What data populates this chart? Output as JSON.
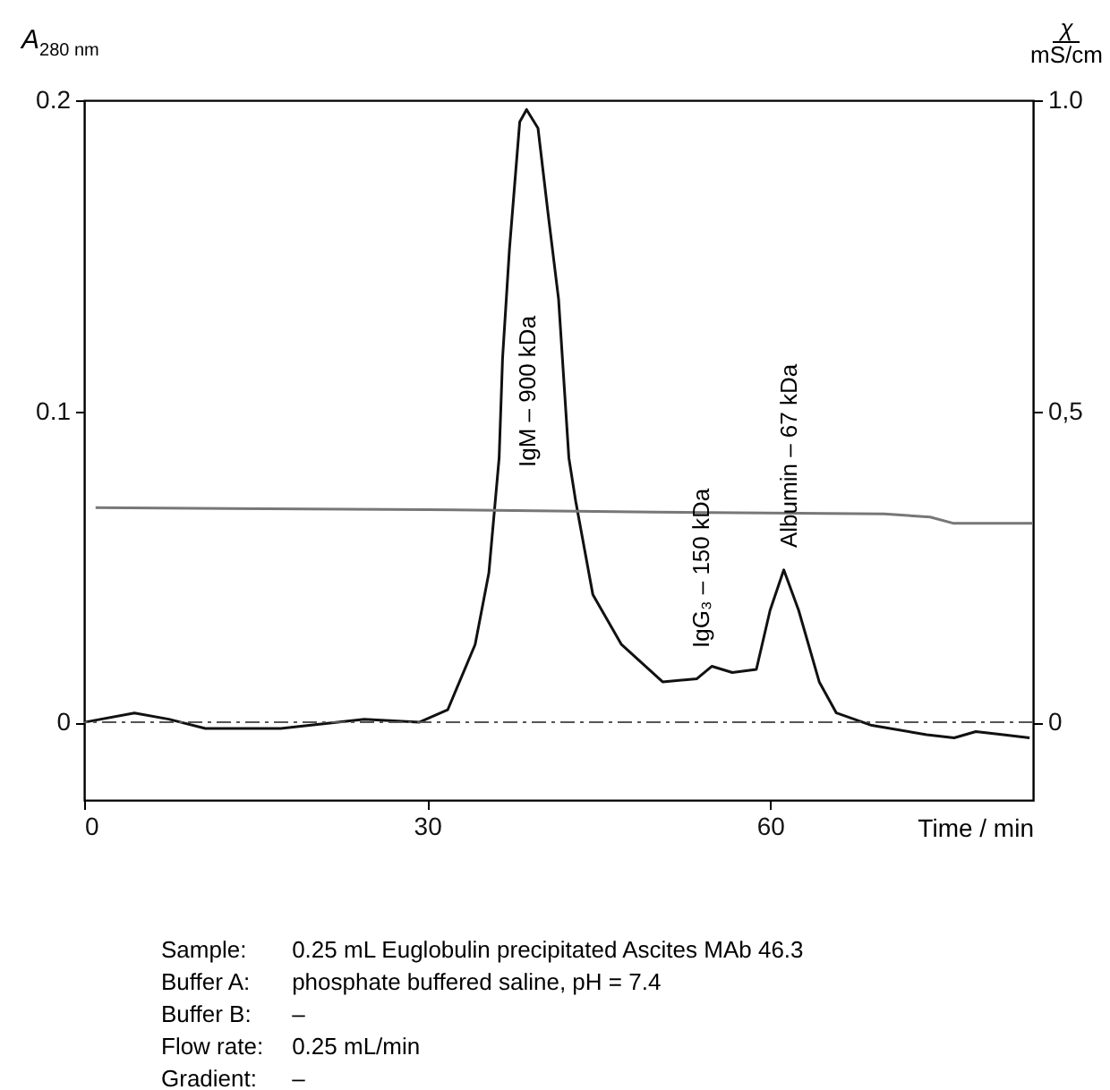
{
  "chart_data": {
    "type": "line",
    "xlabel": "Time / min",
    "ylabel": "A$_{280 nm}$",
    "y2label": "χ mS/cm",
    "xlim": [
      0,
      83
    ],
    "xticks": [
      0,
      30,
      60
    ],
    "ylim": [
      -0.025,
      0.2
    ],
    "yticks": [
      0,
      0.1,
      0.2
    ],
    "y2lim": [
      -0.125,
      1.0
    ],
    "y2ticks": [
      0,
      {
        "value": 0.5,
        "label": "0,5"
      },
      {
        "value": 1.0,
        "label": "1.0"
      }
    ],
    "grid": false,
    "legend": false,
    "marker": "none",
    "series": [
      {
        "color": "#111111",
        "x": [
          0,
          4.4,
          7.4,
          10.6,
          17.2,
          24.5,
          29.3,
          31.8,
          34.2,
          35.4,
          36.3,
          36.6,
          37.2,
          38.1,
          38.7,
          39.7,
          40.6,
          41.5,
          42.4,
          43.0,
          44.5,
          47.0,
          50.6,
          53.6,
          54.9,
          56.7,
          58.8,
          60.0,
          61.2,
          62.5,
          64.3,
          65.8,
          68.9,
          73.7,
          76.1,
          78.0,
          80.4,
          82.7
        ],
        "values": [
          0,
          0.003,
          0.001,
          -0.002,
          -0.002,
          0.001,
          0,
          0.004,
          0.025,
          0.048,
          0.085,
          0.117,
          0.152,
          0.193,
          0.197,
          0.191,
          0.163,
          0.136,
          0.085,
          0.071,
          0.041,
          0.025,
          0.013,
          0.014,
          0.018,
          0.016,
          0.017,
          0.036,
          0.049,
          0.036,
          0.013,
          0.003,
          -0.001,
          -0.004,
          -0.005,
          -0.003,
          -0.004,
          -0.005
        ]
      },
      {
        "color": "#777777",
        "axis": "y2",
        "x": [
          1,
          30,
          50,
          70,
          74,
          76,
          83
        ],
        "values": [
          0.345,
          0.342,
          0.338,
          0.335,
          0.33,
          0.32,
          0.32
        ]
      }
    ],
    "ref_lines": [
      {
        "axis": "y",
        "value": 0,
        "color": "#555555",
        "line_style": "dashed"
      }
    ],
    "annotations": [
      "IgM – 900 kDa",
      "IgG₃ – 150 kDa",
      "Albumin – 67 kDa",
      "Sample: 0.25 mL Euglobulin precipitated Ascites MAb 46.3",
      "Buffer A: phosphate buffered saline, pH = 7.4",
      "Buffer B: –",
      "Flow rate: 0.25 mL/min",
      "Gradient: –"
    ]
  }
}
